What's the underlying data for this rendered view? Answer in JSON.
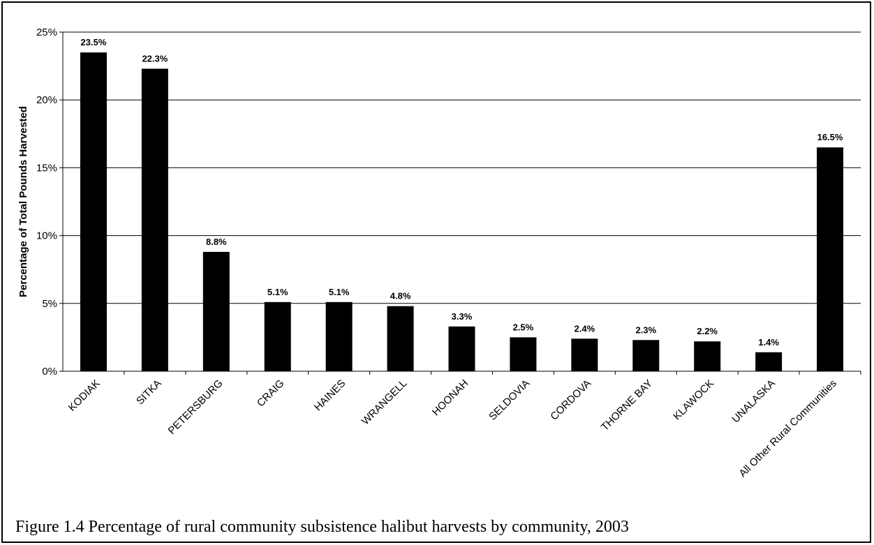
{
  "chart_data": {
    "type": "bar",
    "categories": [
      "KODIAK",
      "SITKA",
      "PETERSBURG",
      "CRAIG",
      "HAINES",
      "WRANGELL",
      "HOONAH",
      "SELDOVIA",
      "CORDOVA",
      "THORNE BAY",
      "KLAWOCK",
      "UNALASKA",
      "All Other Rural Communities"
    ],
    "values": [
      23.5,
      22.3,
      8.8,
      5.1,
      5.1,
      4.8,
      3.3,
      2.5,
      2.4,
      2.3,
      2.2,
      1.4,
      16.5
    ],
    "data_labels": [
      "23.5%",
      "22.3%",
      "8.8%",
      "5.1%",
      "5.1%",
      "4.8%",
      "3.3%",
      "2.5%",
      "2.4%",
      "2.3%",
      "2.2%",
      "1.4%",
      "16.5%"
    ],
    "ylabel": "Percentage of Total Pounds Harvested",
    "xlabel": "",
    "ylim": [
      0,
      25
    ],
    "yticks": [
      "0%",
      "5%",
      "10%",
      "15%",
      "20%",
      "25%"
    ],
    "grid": true,
    "bar_color": "#000000"
  },
  "caption": "Figure 1.4 Percentage of rural community subsistence halibut harvests by community, 2003"
}
